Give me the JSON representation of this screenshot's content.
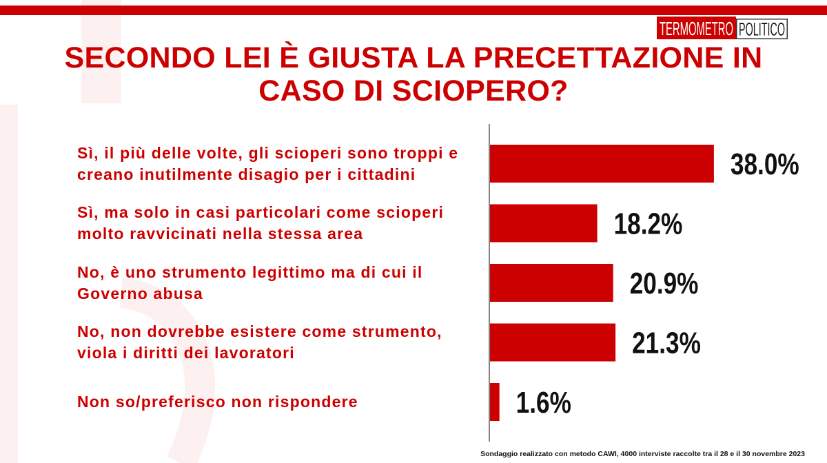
{
  "theme": {
    "accent": "#cc0000",
    "text_dark": "#111111"
  },
  "logo": {
    "word_1": "TERMOMETRO",
    "word_2": "POLITICO"
  },
  "chart_data": {
    "type": "bar",
    "horizontal": true,
    "title": "SECONDO LEI È GIUSTA LA PRECETTAZIONE IN CASO DI SCIOPERO?",
    "categories": [
      "Sì, il più delle volte, gli scioperi sono troppi e creano inutilmente disagio per i cittadini",
      "Sì, ma solo in casi particolari come scioperi molto ravvicinati nella stessa area",
      "No, è uno strumento legittimo ma di cui il Governo abusa",
      "No, non dovrebbe esistere come strumento, viola i diritti dei lavoratori",
      "Non so/preferisco non rispondere"
    ],
    "values": [
      38.0,
      18.2,
      20.9,
      21.3,
      1.6
    ],
    "value_labels": [
      "38.0%",
      "18.2%",
      "20.9%",
      "21.3%",
      "1.6%"
    ],
    "bar_color": "#cc0000",
    "grid": false,
    "legend": false
  },
  "footer": {
    "note": "Sondaggio realizzato con metodo CAWI, 4000 interviste raccolte tra il 28 e il 30 novembre 2023"
  }
}
